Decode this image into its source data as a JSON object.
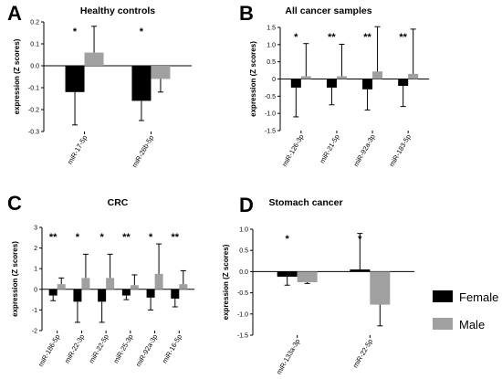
{
  "legend": [
    {
      "label": "Female",
      "color": "#000000"
    },
    {
      "label": "Male",
      "color": "#a0a0a0"
    }
  ],
  "chart_data": [
    {
      "panel": "A",
      "type": "bar",
      "title": "Healthy controls",
      "ylabel": "expression (Z scores)",
      "ylim": [
        -0.3,
        0.2
      ],
      "yticks": [
        "0.2",
        "0.1",
        "0.0",
        "-0.1",
        "-0.2",
        "-0.3"
      ],
      "categories": [
        "miR-17-5p",
        "miR-26b-5p"
      ],
      "series": [
        {
          "name": "Female",
          "values": [
            -0.12,
            -0.16
          ],
          "err": [
            0.15,
            0.09
          ]
        },
        {
          "name": "Male",
          "values": [
            0.06,
            -0.06
          ],
          "err": [
            0.12,
            0.06
          ]
        }
      ],
      "significance": [
        "*",
        "*"
      ]
    },
    {
      "panel": "B",
      "type": "bar",
      "title": "All cancer samples",
      "ylabel": "expression (Z scores)",
      "ylim": [
        -1.5,
        1.5
      ],
      "yticks": [
        "1.5",
        "1.0",
        "0.5",
        "0",
        "-0.5",
        "-1.0",
        "-1.5"
      ],
      "categories": [
        "miR-126-3p",
        "miR-21-5p",
        "miR-92a-3p",
        "miR-183-5p"
      ],
      "series": [
        {
          "name": "Female",
          "values": [
            -0.25,
            -0.25,
            -0.3,
            -0.2
          ],
          "err": [
            0.85,
            0.5,
            0.6,
            0.6
          ]
        },
        {
          "name": "Male",
          "values": [
            0.08,
            0.08,
            0.22,
            0.15
          ],
          "err": [
            0.95,
            0.93,
            1.3,
            1.3
          ]
        }
      ],
      "significance": [
        "*",
        "**",
        "**",
        "**"
      ]
    },
    {
      "panel": "C",
      "type": "bar",
      "title": "CRC",
      "ylabel": "expression (Z scores)",
      "ylim": [
        -2,
        3
      ],
      "yticks": [
        "3",
        "2",
        "1",
        "0",
        "-1",
        "-2"
      ],
      "categories": [
        "miR-186-5p",
        "miR-22-3p",
        "miR-22-5p",
        "miR-25-3p",
        "miR-92a-3p",
        "miR-16-5p"
      ],
      "series": [
        {
          "name": "Female",
          "values": [
            -0.3,
            -0.6,
            -0.6,
            -0.3,
            -0.4,
            -0.45
          ],
          "err": [
            0.25,
            1.0,
            1.0,
            0.2,
            0.6,
            0.4
          ]
        },
        {
          "name": "Male",
          "values": [
            0.25,
            0.55,
            0.55,
            0.2,
            0.75,
            0.25
          ],
          "err": [
            0.3,
            1.15,
            1.15,
            0.5,
            1.45,
            0.65
          ]
        }
      ],
      "significance": [
        "**",
        "*",
        "*",
        "**",
        "*",
        "**"
      ]
    },
    {
      "panel": "D",
      "type": "bar",
      "title": "Stomach cancer",
      "ylabel": "expression (Z scores)",
      "ylim": [
        -1.5,
        1.0
      ],
      "yticks": [
        "1.0",
        "0.5",
        "0.0",
        "-0.5",
        "-1.0",
        "-1.5"
      ],
      "categories": [
        "miR-133a-3p",
        "miR-22-5p"
      ],
      "series": [
        {
          "name": "Female",
          "values": [
            -0.12,
            0.05
          ],
          "err": [
            0.2,
            0.85
          ]
        },
        {
          "name": "Male",
          "values": [
            -0.25,
            -0.78
          ],
          "err": [
            0.03,
            0.5
          ]
        }
      ],
      "significance": [
        "*",
        "*"
      ]
    }
  ]
}
